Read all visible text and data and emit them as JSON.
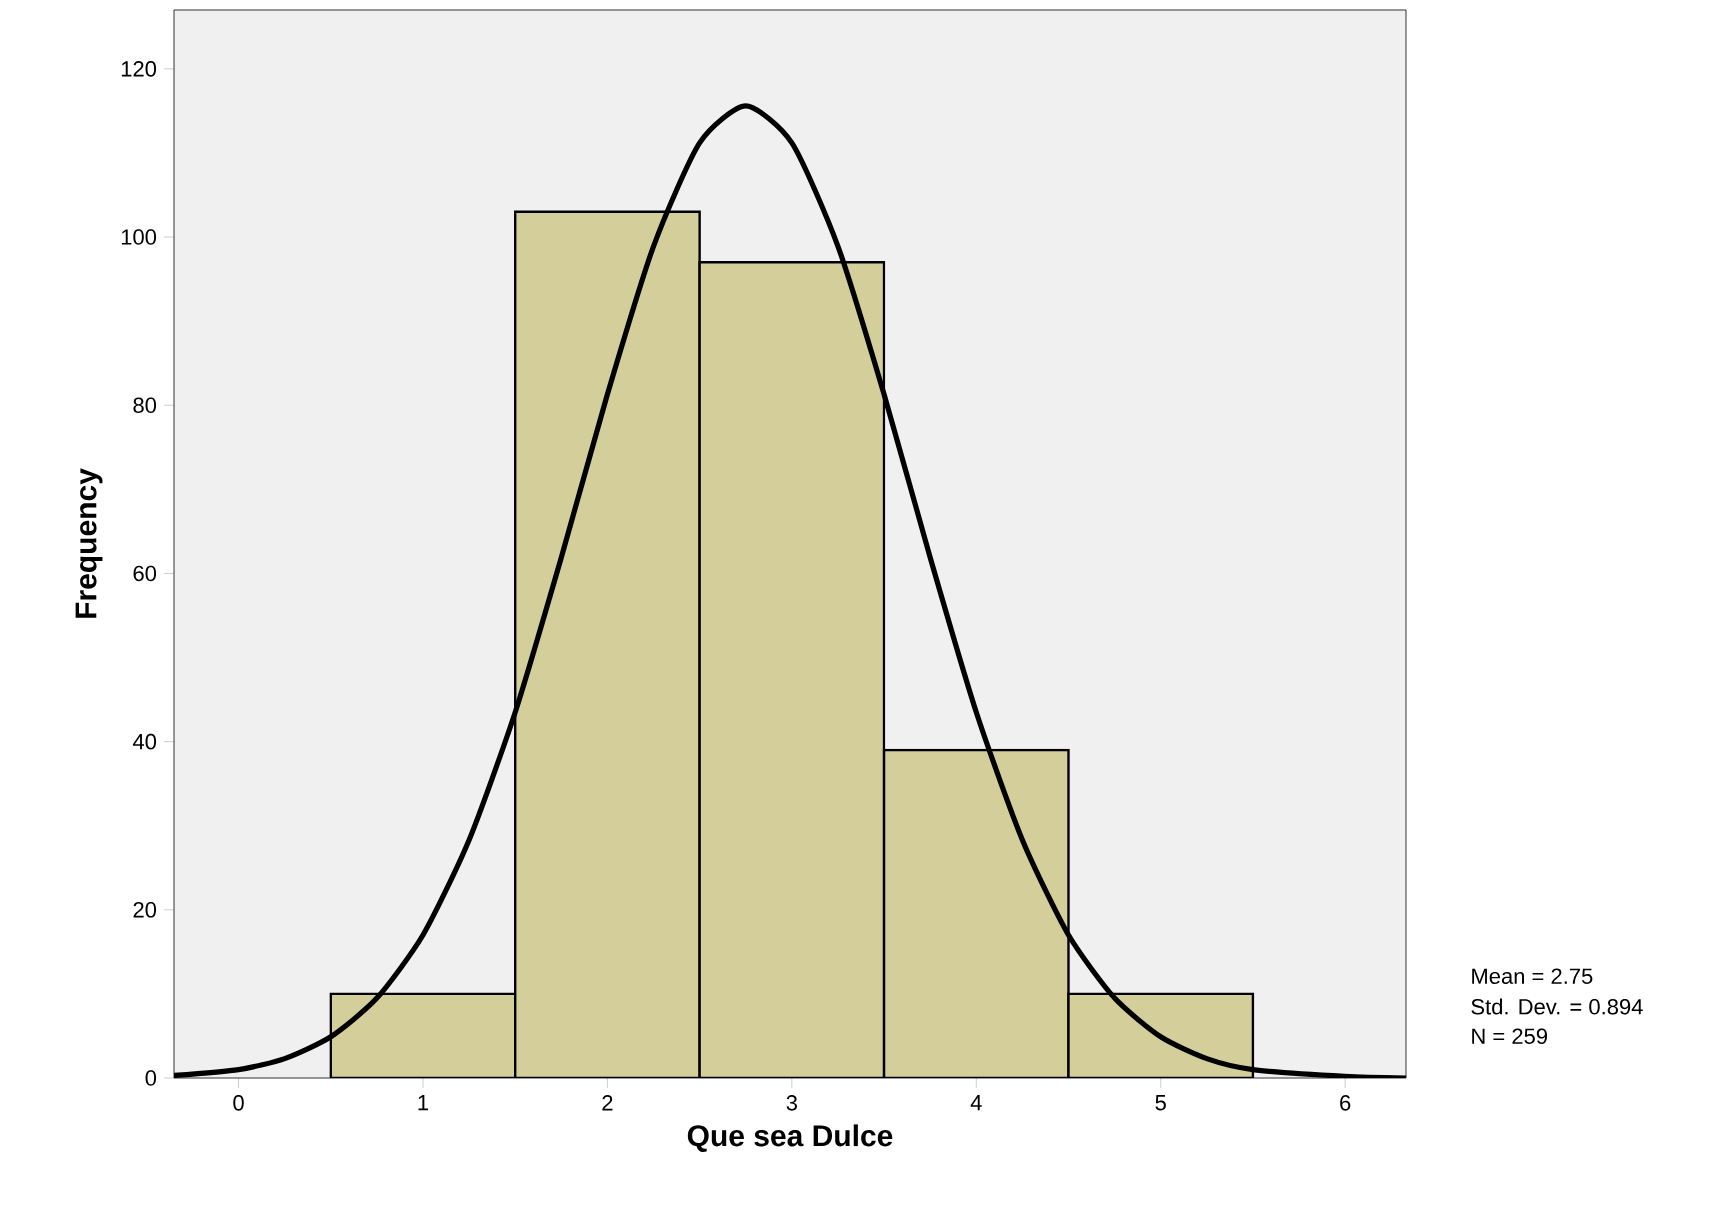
{
  "chart_data": {
    "type": "histogram",
    "xlabel": "Que sea Dulce",
    "ylabel": "Frequency",
    "bins": [
      0.5,
      1.5,
      2.5,
      3.5,
      4.5,
      5.5
    ],
    "values": [
      10,
      103,
      97,
      39,
      10
    ],
    "color": "#d3ce9a",
    "series": [
      {
        "type": "line",
        "color": "#000000",
        "x": [
          -0.35,
          0,
          0.25,
          0.5,
          0.75,
          1,
          1.25,
          1.5,
          1.75,
          2,
          2.25,
          2.5,
          2.75,
          3,
          3.25,
          3.5,
          3.75,
          4,
          4.25,
          4.5,
          4.75,
          5,
          5.25,
          5.5,
          6,
          6.33
        ],
        "values": [
          0.3,
          1.0,
          2.3,
          4.9,
          9.5,
          17.0,
          28.3,
          43.5,
          61.9,
          81.3,
          98.9,
          111.2,
          115.6,
          111.2,
          98.9,
          81.3,
          61.9,
          43.5,
          28.3,
          17.0,
          9.5,
          4.9,
          2.3,
          1.0,
          0.2,
          0.0
        ]
      }
    ],
    "xlim": [
      -0.35,
      6.33
    ],
    "ylim": [
      0,
      127
    ],
    "xticks": [
      0,
      1,
      2,
      3,
      4,
      5,
      6
    ],
    "yticks": [
      0,
      20,
      40,
      60,
      80,
      100,
      120
    ],
    "annotations": [
      "Mean = 2.75",
      "Std. Dev. = 0.894",
      "N = 259"
    ]
  }
}
